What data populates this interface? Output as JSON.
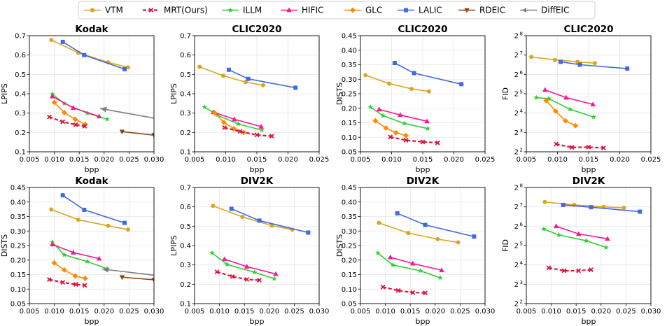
{
  "legend": [
    {
      "name": "VTM",
      "color": "#daa520",
      "marker": "circle",
      "dash": false
    },
    {
      "name": "MRT(Ours)",
      "color": "#dc143c",
      "marker": "x",
      "dash": true
    },
    {
      "name": "ILLM",
      "color": "#32cd32",
      "marker": "star",
      "dash": false
    },
    {
      "name": "HIFIC",
      "color": "#ff1493",
      "marker": "triangle",
      "dash": false
    },
    {
      "name": "GLC",
      "color": "#ff8c00",
      "marker": "diamond",
      "dash": false
    },
    {
      "name": "LALIC",
      "color": "#4169e1",
      "marker": "square",
      "dash": false
    },
    {
      "name": "RDEIC",
      "color": "#8b4513",
      "marker": "tri_down",
      "dash": false
    },
    {
      "name": "DiffEIC",
      "color": "#808080",
      "marker": "arrow",
      "dash": false
    }
  ],
  "chart_data": [
    {
      "type": "line",
      "title": "Kodak",
      "xlabel": "bpp",
      "ylabel": "LPIPS",
      "xlim": [
        0.005,
        0.03
      ],
      "ylim": [
        0.1,
        0.7
      ],
      "xticks": [
        0.005,
        0.01,
        0.015,
        0.02,
        0.025,
        0.03
      ],
      "xtick_labels": [
        "0.005",
        "0.010",
        "0.015",
        "0.020",
        "0.025",
        "0.030"
      ],
      "yticks": [
        0.1,
        0.2,
        0.3,
        0.4,
        0.5,
        0.6,
        0.7
      ],
      "ytick_labels": [
        "0.1",
        "0.2",
        "0.3",
        "0.4",
        "0.5",
        "0.6",
        "0.7"
      ],
      "series": [
        {
          "name": "VTM",
          "x": [
            0.0094,
            0.0148,
            0.0208,
            0.0248
          ],
          "y": [
            0.678,
            0.612,
            0.562,
            0.536
          ]
        },
        {
          "name": "LALIC",
          "x": [
            0.0117,
            0.016,
            0.0241
          ],
          "y": [
            0.668,
            0.6,
            0.527
          ]
        },
        {
          "name": "ILLM",
          "x": [
            0.0096,
            0.012,
            0.0166,
            0.0206
          ],
          "y": [
            0.398,
            0.35,
            0.3,
            0.268
          ]
        },
        {
          "name": "HIFIC",
          "x": [
            0.0096,
            0.0138,
            0.019
          ],
          "y": [
            0.386,
            0.327,
            0.283
          ]
        },
        {
          "name": "GLC",
          "x": [
            0.01,
            0.012,
            0.0142,
            0.0162
          ],
          "y": [
            0.355,
            0.303,
            0.268,
            0.242
          ]
        },
        {
          "name": "MRT(Ours)",
          "x": [
            0.009,
            0.0117,
            0.0143,
            0.0161
          ],
          "y": [
            0.28,
            0.255,
            0.24,
            0.232
          ]
        },
        {
          "name": "RDEIC",
          "x": [
            0.0236,
            0.03
          ],
          "y": [
            0.204,
            0.186
          ]
        },
        {
          "name": "DiffEIC",
          "x": [
            0.03,
            0.0192
          ],
          "y": [
            0.274,
            0.324
          ]
        }
      ]
    },
    {
      "type": "line",
      "title": "CLIC2020",
      "xlabel": "bpp",
      "ylabel": "LPIPS",
      "xlim": [
        0.005,
        0.025
      ],
      "ylim": [
        0.1,
        0.7
      ],
      "xticks": [
        0.005,
        0.01,
        0.015,
        0.02,
        0.025
      ],
      "xtick_labels": [
        "0.005",
        "0.010",
        "0.015",
        "0.020",
        "0.025"
      ],
      "yticks": [
        0.1,
        0.2,
        0.3,
        0.4,
        0.5,
        0.6,
        0.7
      ],
      "ytick_labels": [
        "0.1",
        "0.2",
        "0.3",
        "0.4",
        "0.5",
        "0.6",
        "0.7"
      ],
      "series": [
        {
          "name": "VTM",
          "x": [
            0.0058,
            0.0096,
            0.0132,
            0.016
          ],
          "y": [
            0.539,
            0.493,
            0.46,
            0.444
          ]
        },
        {
          "name": "LALIC",
          "x": [
            0.0105,
            0.0136,
            0.0212
          ],
          "y": [
            0.524,
            0.477,
            0.431
          ]
        },
        {
          "name": "ILLM",
          "x": [
            0.0066,
            0.0086,
            0.012,
            0.0158
          ],
          "y": [
            0.331,
            0.29,
            0.244,
            0.212
          ]
        },
        {
          "name": "HIFIC",
          "x": [
            0.008,
            0.0114,
            0.0157
          ],
          "y": [
            0.305,
            0.268,
            0.23
          ]
        },
        {
          "name": "GLC",
          "x": [
            0.0082,
            0.0097,
            0.0113,
            0.0129
          ],
          "y": [
            0.302,
            0.252,
            0.22,
            0.2
          ]
        },
        {
          "name": "MRT(Ours)",
          "x": [
            0.0098,
            0.0123,
            0.015,
            0.0174
          ],
          "y": [
            0.225,
            0.205,
            0.187,
            0.181
          ]
        }
      ]
    },
    {
      "type": "line",
      "title": "CLIC2020",
      "xlabel": "bpp",
      "ylabel": "DISTS",
      "xlim": [
        0.005,
        0.025
      ],
      "ylim": [
        0.05,
        0.45
      ],
      "xticks": [
        0.005,
        0.01,
        0.015,
        0.02,
        0.025
      ],
      "xtick_labels": [
        "0.005",
        "0.010",
        "0.015",
        "0.020",
        "0.025"
      ],
      "yticks": [
        0.05,
        0.1,
        0.15,
        0.2,
        0.25,
        0.3,
        0.35,
        0.4,
        0.45
      ],
      "ytick_labels": [
        "0.05",
        "0.10",
        "0.15",
        "0.20",
        "0.25",
        "0.30",
        "0.35",
        "0.40",
        "0.45"
      ],
      "series": [
        {
          "name": "VTM",
          "x": [
            0.0058,
            0.0096,
            0.0132,
            0.016
          ],
          "y": [
            0.314,
            0.285,
            0.267,
            0.258
          ]
        },
        {
          "name": "LALIC",
          "x": [
            0.0105,
            0.0136,
            0.0212
          ],
          "y": [
            0.356,
            0.321,
            0.283
          ]
        },
        {
          "name": "ILLM",
          "x": [
            0.0066,
            0.0086,
            0.012,
            0.0158
          ],
          "y": [
            0.204,
            0.175,
            0.148,
            0.13
          ]
        },
        {
          "name": "HIFIC",
          "x": [
            0.008,
            0.0114,
            0.0157
          ],
          "y": [
            0.196,
            0.177,
            0.155
          ]
        },
        {
          "name": "GLC",
          "x": [
            0.0074,
            0.0091,
            0.0107,
            0.0123
          ],
          "y": [
            0.157,
            0.132,
            0.116,
            0.106
          ]
        },
        {
          "name": "MRT(Ours)",
          "x": [
            0.0098,
            0.0123,
            0.015,
            0.0174
          ],
          "y": [
            0.101,
            0.09,
            0.084,
            0.081
          ]
        }
      ]
    },
    {
      "type": "line",
      "title": "CLIC2020",
      "xlabel": "bpp",
      "ylabel": "FID",
      "xlim": [
        0.005,
        0.025
      ],
      "ylim": [
        2,
        8
      ],
      "yscale": "log2",
      "xticks": [
        0.005,
        0.01,
        0.015,
        0.02,
        0.025
      ],
      "xtick_labels": [
        "0.005",
        "0.010",
        "0.015",
        "0.020",
        "0.025"
      ],
      "yticks": [
        2,
        3,
        4,
        5,
        6,
        7,
        8
      ],
      "ytick_labels": [
        "2",
        "3",
        "4",
        "5",
        "6",
        "7",
        "8"
      ],
      "series": [
        {
          "name": "VTM",
          "x": [
            0.0058,
            0.0096,
            0.0132,
            0.016
          ],
          "y": [
            6.9,
            6.75,
            6.65,
            6.58
          ]
        },
        {
          "name": "LALIC",
          "x": [
            0.0105,
            0.0136,
            0.0212
          ],
          "y": [
            6.65,
            6.5,
            6.3
          ]
        },
        {
          "name": "ILLM",
          "x": [
            0.0066,
            0.0086,
            0.012,
            0.0158
          ],
          "y": [
            4.8,
            4.75,
            4.2,
            3.8
          ]
        },
        {
          "name": "HIFIC",
          "x": [
            0.008,
            0.0114,
            0.0157
          ],
          "y": [
            5.2,
            4.8,
            4.45
          ]
        },
        {
          "name": "GLC",
          "x": [
            0.0082,
            0.0097,
            0.0113,
            0.0129
          ],
          "y": [
            4.65,
            4.1,
            3.6,
            3.35
          ]
        },
        {
          "name": "MRT(Ours)",
          "x": [
            0.0098,
            0.0123,
            0.015,
            0.0174
          ],
          "y": [
            2.4,
            2.23,
            2.24,
            2.2
          ]
        }
      ]
    },
    {
      "type": "line",
      "title": "Kodak",
      "xlabel": "bpp",
      "ylabel": "DISTS",
      "xlim": [
        0.005,
        0.03
      ],
      "ylim": [
        0.05,
        0.45
      ],
      "xticks": [
        0.005,
        0.01,
        0.015,
        0.02,
        0.025,
        0.03
      ],
      "xtick_labels": [
        "0.005",
        "0.010",
        "0.015",
        "0.020",
        "0.025",
        "0.030"
      ],
      "yticks": [
        0.05,
        0.1,
        0.15,
        0.2,
        0.25,
        0.3,
        0.35,
        0.4,
        0.45
      ],
      "ytick_labels": [
        "0.05",
        "0.10",
        "0.15",
        "0.20",
        "0.25",
        "0.30",
        "0.35",
        "0.40",
        "0.45"
      ],
      "series": [
        {
          "name": "VTM",
          "x": [
            0.0094,
            0.0148,
            0.0208,
            0.0248
          ],
          "y": [
            0.374,
            0.339,
            0.318,
            0.305
          ]
        },
        {
          "name": "LALIC",
          "x": [
            0.0117,
            0.016,
            0.0241
          ],
          "y": [
            0.423,
            0.373,
            0.328
          ]
        },
        {
          "name": "ILLM",
          "x": [
            0.0096,
            0.012,
            0.0166,
            0.0206
          ],
          "y": [
            0.262,
            0.218,
            0.195,
            0.17
          ]
        },
        {
          "name": "HIFIC",
          "x": [
            0.0096,
            0.0138,
            0.019
          ],
          "y": [
            0.254,
            0.226,
            0.205
          ]
        },
        {
          "name": "GLC",
          "x": [
            0.01,
            0.012,
            0.0142,
            0.0162
          ],
          "y": [
            0.19,
            0.166,
            0.145,
            0.137
          ]
        },
        {
          "name": "MRT(Ours)",
          "x": [
            0.009,
            0.0117,
            0.0143,
            0.0161
          ],
          "y": [
            0.133,
            0.123,
            0.116,
            0.113
          ]
        },
        {
          "name": "RDEIC",
          "x": [
            0.0236,
            0.03
          ],
          "y": [
            0.141,
            0.132
          ]
        },
        {
          "name": "DiffEIC",
          "x": [
            0.03,
            0.0196
          ],
          "y": [
            0.148,
            0.169
          ]
        }
      ]
    },
    {
      "type": "line",
      "title": "DIV2K",
      "xlabel": "bpp",
      "ylabel": "LPIPS",
      "xlim": [
        0.005,
        0.03
      ],
      "ylim": [
        0.1,
        0.7
      ],
      "xticks": [
        0.005,
        0.01,
        0.015,
        0.02,
        0.025,
        0.03
      ],
      "xtick_labels": [
        "0.005",
        "0.010",
        "0.015",
        "0.020",
        "0.025",
        "0.030"
      ],
      "yticks": [
        0.1,
        0.2,
        0.3,
        0.4,
        0.5,
        0.6,
        0.7
      ],
      "ytick_labels": [
        "0.1",
        "0.2",
        "0.3",
        "0.4",
        "0.5",
        "0.6",
        "0.7"
      ],
      "series": [
        {
          "name": "VTM",
          "x": [
            0.0087,
            0.0146,
            0.0205,
            0.0246
          ],
          "y": [
            0.605,
            0.548,
            0.503,
            0.482
          ]
        },
        {
          "name": "LALIC",
          "x": [
            0.0124,
            0.018,
            0.0278
          ],
          "y": [
            0.59,
            0.529,
            0.467
          ]
        },
        {
          "name": "ILLM",
          "x": [
            0.0085,
            0.0115,
            0.017,
            0.021
          ],
          "y": [
            0.362,
            0.303,
            0.262,
            0.229
          ]
        },
        {
          "name": "HIFIC",
          "x": [
            0.011,
            0.0155,
            0.0213
          ],
          "y": [
            0.33,
            0.291,
            0.253
          ]
        },
        {
          "name": "MRT(Ours)",
          "x": [
            0.0095,
            0.0126,
            0.0155,
            0.018
          ],
          "y": [
            0.264,
            0.24,
            0.225,
            0.221
          ]
        }
      ]
    },
    {
      "type": "line",
      "title": "DIV2K",
      "xlabel": "bpp",
      "ylabel": "DISTS",
      "xlim": [
        0.005,
        0.03
      ],
      "ylim": [
        0.05,
        0.45
      ],
      "xticks": [
        0.005,
        0.01,
        0.015,
        0.02,
        0.025,
        0.03
      ],
      "xtick_labels": [
        "0.005",
        "0.010",
        "0.015",
        "0.020",
        "0.025",
        "0.030"
      ],
      "yticks": [
        0.05,
        0.1,
        0.15,
        0.2,
        0.25,
        0.3,
        0.35,
        0.4,
        0.45
      ],
      "ytick_labels": [
        "0.05",
        "0.10",
        "0.15",
        "0.20",
        "0.25",
        "0.30",
        "0.35",
        "0.40",
        "0.45"
      ],
      "series": [
        {
          "name": "VTM",
          "x": [
            0.0087,
            0.0146,
            0.0205,
            0.0246
          ],
          "y": [
            0.328,
            0.293,
            0.272,
            0.261
          ]
        },
        {
          "name": "LALIC",
          "x": [
            0.0124,
            0.018,
            0.0278
          ],
          "y": [
            0.361,
            0.321,
            0.281
          ]
        },
        {
          "name": "ILLM",
          "x": [
            0.0085,
            0.0115,
            0.017,
            0.021
          ],
          "y": [
            0.224,
            0.183,
            0.163,
            0.139
          ]
        },
        {
          "name": "HIFIC",
          "x": [
            0.011,
            0.0155,
            0.0213
          ],
          "y": [
            0.21,
            0.188,
            0.165
          ]
        },
        {
          "name": "MRT(Ours)",
          "x": [
            0.0095,
            0.0126,
            0.0155,
            0.018
          ],
          "y": [
            0.107,
            0.095,
            0.088,
            0.087
          ]
        }
      ]
    },
    {
      "type": "line",
      "title": "DIV2K",
      "xlabel": "bpp",
      "ylabel": "FID",
      "xlim": [
        0.005,
        0.03
      ],
      "ylim": [
        2,
        8
      ],
      "yscale": "log2",
      "xticks": [
        0.005,
        0.01,
        0.015,
        0.02,
        0.025,
        0.03
      ],
      "xtick_labels": [
        "0.005",
        "0.010",
        "0.015",
        "0.020",
        "0.025",
        "0.030"
      ],
      "yticks": [
        2,
        3,
        4,
        5,
        6,
        7,
        8
      ],
      "ytick_labels": [
        "2",
        "3",
        "4",
        "5",
        "6",
        "7",
        "8"
      ],
      "series": [
        {
          "name": "VTM",
          "x": [
            0.0087,
            0.0146,
            0.0205,
            0.0246
          ],
          "y": [
            7.25,
            7.1,
            7.0,
            6.95
          ]
        },
        {
          "name": "LALIC",
          "x": [
            0.0124,
            0.018,
            0.0278
          ],
          "y": [
            7.1,
            6.98,
            6.75
          ]
        },
        {
          "name": "ILLM",
          "x": [
            0.0085,
            0.0115,
            0.017,
            0.021
          ],
          "y": [
            5.85,
            5.55,
            5.25,
            4.9
          ]
        },
        {
          "name": "HIFIC",
          "x": [
            0.011,
            0.0155,
            0.0213
          ],
          "y": [
            6.0,
            5.6,
            5.35
          ]
        },
        {
          "name": "MRT(Ours)",
          "x": [
            0.0095,
            0.0126,
            0.0155,
            0.018
          ],
          "y": [
            3.85,
            3.7,
            3.7,
            3.75
          ]
        }
      ]
    }
  ]
}
